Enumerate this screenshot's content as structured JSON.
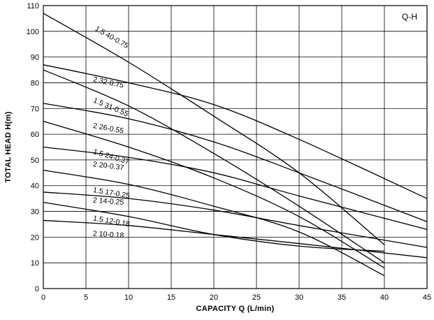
{
  "chart_data": {
    "type": "line",
    "title": "Q-H",
    "xlabel": "CAPACITY  Q (L/min)",
    "ylabel": "TOTAL HEAD  H(m)",
    "xlim": [
      0,
      45
    ],
    "ylim": [
      0,
      110
    ],
    "x_ticks": [
      0,
      5,
      10,
      15,
      20,
      25,
      30,
      35,
      40,
      45
    ],
    "y_ticks": [
      0,
      10,
      20,
      30,
      40,
      50,
      60,
      70,
      80,
      90,
      100,
      110
    ],
    "grid": true,
    "series": [
      {
        "name": "1.5 40-0.75",
        "label_at": [
          6.0,
          100.5
        ],
        "points": [
          [
            0,
            107
          ],
          [
            10,
            88
          ],
          [
            20,
            67
          ],
          [
            30,
            45
          ],
          [
            40,
            17
          ]
        ]
      },
      {
        "name": "2 32-0.75",
        "label_at": [
          5.8,
          80.5
        ],
        "points": [
          [
            0,
            87
          ],
          [
            10,
            80
          ],
          [
            20,
            71.5
          ],
          [
            30,
            58
          ],
          [
            45,
            35
          ]
        ]
      },
      {
        "name": "1.5 31-0.55",
        "label_at": [
          5.8,
          72.5
        ],
        "points": [
          [
            0,
            85
          ],
          [
            10,
            71
          ],
          [
            20,
            52.5
          ],
          [
            30,
            32
          ],
          [
            40,
            10
          ]
        ]
      },
      {
        "name": "2 26-0.55",
        "label_at": [
          5.8,
          62.5
        ],
        "points": [
          [
            0,
            72
          ],
          [
            10,
            66
          ],
          [
            20,
            57
          ],
          [
            30,
            45
          ],
          [
            45,
            26
          ]
        ]
      },
      {
        "name": "1.5 24-0.37",
        "label_at": [
          5.8,
          52.5
        ],
        "points": [
          [
            0,
            65
          ],
          [
            10,
            55
          ],
          [
            20,
            43
          ],
          [
            30,
            28
          ],
          [
            40,
            8
          ]
        ]
      },
      {
        "name": "2 20-0.37",
        "label_at": [
          5.8,
          47.5
        ],
        "points": [
          [
            0,
            55
          ],
          [
            10,
            51
          ],
          [
            20,
            45
          ],
          [
            30,
            36
          ],
          [
            45,
            23
          ]
        ]
      },
      {
        "name": "1.5 17-0.25",
        "label_at": [
          5.8,
          37.5
        ],
        "points": [
          [
            0,
            46
          ],
          [
            10,
            40.5
          ],
          [
            20,
            32
          ],
          [
            30,
            22
          ],
          [
            40,
            5
          ]
        ]
      },
      {
        "name": "2 14-0.25",
        "label_at": [
          5.8,
          33.5
        ],
        "points": [
          [
            0,
            37.5
          ],
          [
            10,
            35
          ],
          [
            20,
            30.5
          ],
          [
            30,
            24.5
          ],
          [
            45,
            16
          ]
        ]
      },
      {
        "name": "1.5 12-0.18",
        "label_at": [
          5.8,
          26.5
        ],
        "points": [
          [
            0,
            33.5
          ],
          [
            10,
            28
          ],
          [
            20,
            21
          ],
          [
            30,
            16.5
          ],
          [
            40,
            14.5
          ]
        ]
      },
      {
        "name": "2 10-0.18",
        "label_at": [
          5.8,
          20.5
        ],
        "points": [
          [
            0,
            26.5
          ],
          [
            10,
            24.5
          ],
          [
            20,
            21
          ],
          [
            30,
            17.5
          ],
          [
            45,
            12
          ]
        ]
      }
    ]
  }
}
